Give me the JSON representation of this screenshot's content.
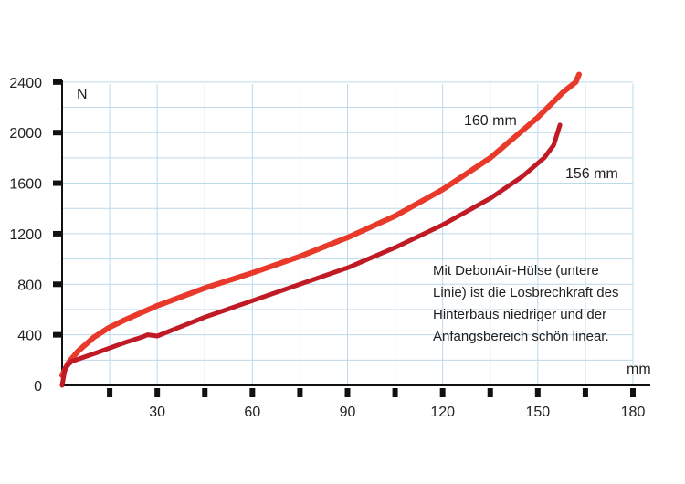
{
  "chart_data": {
    "type": "line",
    "x_unit": "mm",
    "y_unit": "N",
    "xlim": [
      0,
      180
    ],
    "ylim": [
      0,
      2500
    ],
    "x_ticks": [
      0,
      15,
      30,
      45,
      60,
      75,
      90,
      105,
      120,
      135,
      150,
      165,
      180
    ],
    "x_tick_labels": [
      "30",
      "60",
      "90",
      "120",
      "150",
      "180"
    ],
    "x_tick_label_values": [
      30,
      60,
      90,
      120,
      150,
      180
    ],
    "y_ticks": [
      0,
      400,
      800,
      1200,
      1600,
      2000,
      2400
    ],
    "y_tick_labels": [
      "0",
      "400",
      "800",
      "1200",
      "1600",
      "2000",
      "2400"
    ],
    "grid": true,
    "series": [
      {
        "name": "160 mm",
        "color": "#e8392b",
        "x": [
          0,
          2,
          5,
          10,
          15,
          20,
          30,
          45,
          60,
          75,
          90,
          105,
          120,
          135,
          150,
          158,
          162,
          163
        ],
        "y": [
          80,
          180,
          270,
          380,
          460,
          520,
          630,
          770,
          890,
          1020,
          1170,
          1340,
          1550,
          1800,
          2120,
          2320,
          2400,
          2460
        ]
      },
      {
        "name": "156 mm",
        "color": "#c01a25",
        "x": [
          0,
          1,
          3,
          10,
          20,
          25,
          27,
          30,
          35,
          45,
          60,
          75,
          90,
          105,
          120,
          135,
          145,
          152,
          155,
          157
        ],
        "y": [
          0,
          140,
          190,
          250,
          340,
          380,
          400,
          390,
          440,
          540,
          670,
          800,
          930,
          1090,
          1270,
          1480,
          1650,
          1800,
          1900,
          2060
        ]
      }
    ],
    "annotation": {
      "lines": [
        "Mit DebonAir-Hülse (untere",
        "Linie) ist die Losbrechkraft des",
        "Hinterbaus niedriger und der",
        "Anfangsbereich schön linear."
      ]
    }
  }
}
